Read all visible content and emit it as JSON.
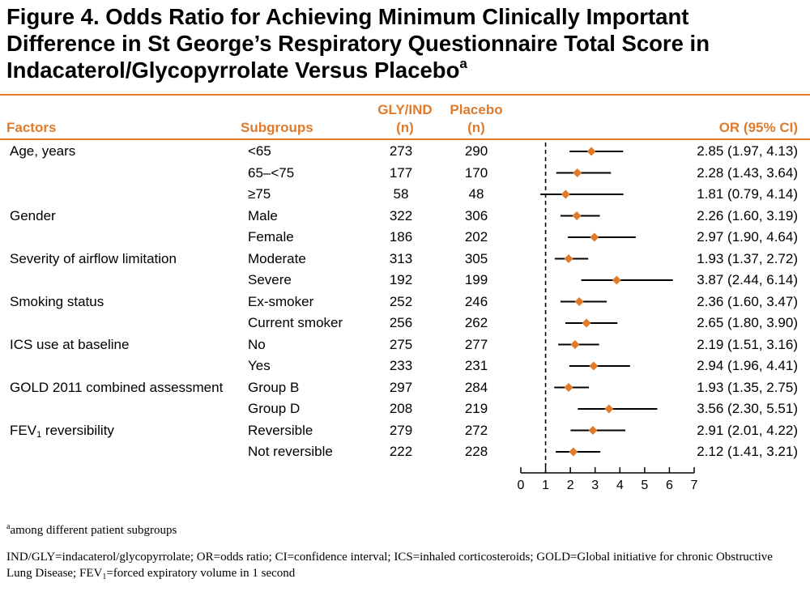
{
  "title": {
    "text": "Figure 4. Odds Ratio for Achieving Minimum Clinically Important Difference in St George’s Respiratory Questionnaire Total Score in Indacaterol/Glycopyrrolate Versus Placebo",
    "superscript": "a"
  },
  "headers": {
    "factors": "Factors",
    "subgroups": "Subgroups",
    "gly_line1": "GLY/IND",
    "gly_line2": "(n)",
    "placebo_line1": "Placebo",
    "placebo_line2": "(n)",
    "or": "OR (95% CI)"
  },
  "rows": [
    {
      "factor": "Age, years",
      "subgroup": "<65",
      "gly": "273",
      "placebo": "290",
      "or_text": "2.85 (1.97, 4.13)"
    },
    {
      "factor": "",
      "subgroup": "65–<75",
      "gly": "177",
      "placebo": "170",
      "or_text": "2.28 (1.43, 3.64)"
    },
    {
      "factor": "",
      "subgroup": "≥75",
      "gly": "58",
      "placebo": "48",
      "or_text": "1.81 (0.79, 4.14)"
    },
    {
      "factor": "Gender",
      "subgroup": "Male",
      "gly": "322",
      "placebo": "306",
      "or_text": "2.26 (1.60, 3.19)"
    },
    {
      "factor": "",
      "subgroup": "Female",
      "gly": "186",
      "placebo": "202",
      "or_text": "2.97 (1.90, 4.64)"
    },
    {
      "factor": "Severity of airflow limitation",
      "subgroup": "Moderate",
      "gly": "313",
      "placebo": "305",
      "or_text": "1.93 (1.37, 2.72)"
    },
    {
      "factor": "",
      "subgroup": "Severe",
      "gly": "192",
      "placebo": "199",
      "or_text": "3.87 (2.44, 6.14)"
    },
    {
      "factor": "Smoking status",
      "subgroup": "Ex-smoker",
      "gly": "252",
      "placebo": "246",
      "or_text": "2.36 (1.60, 3.47)"
    },
    {
      "factor": "",
      "subgroup": "Current smoker",
      "gly": "256",
      "placebo": "262",
      "or_text": "2.65 (1.80, 3.90)"
    },
    {
      "factor": "ICS use at baseline",
      "subgroup": "No",
      "gly": "275",
      "placebo": "277",
      "or_text": "2.19 (1.51, 3.16)"
    },
    {
      "factor": "",
      "subgroup": "Yes",
      "gly": "233",
      "placebo": "231",
      "or_text": "2.94 (1.96, 4.41)"
    },
    {
      "factor": "GOLD 2011 combined assessment",
      "subgroup": "Group B",
      "gly": "297",
      "placebo": "284",
      "or_text": "1.93 (1.35, 2.75)"
    },
    {
      "factor": "",
      "subgroup": "Group D",
      "gly": "208",
      "placebo": "219",
      "or_text": "3.56 (2.30, 5.51)"
    },
    {
      "factor": "FEV",
      "factor_sub": "1",
      "factor_rest": " reversibility",
      "subgroup": "Reversible",
      "gly": "279",
      "placebo": "272",
      "or_text": "2.91 (2.01, 4.22)"
    },
    {
      "factor": "",
      "subgroup": "Not reversible",
      "gly": "222",
      "placebo": "228",
      "or_text": "2.12 (1.41, 3.21)"
    }
  ],
  "chart_data": {
    "type": "forest",
    "xlim": [
      0,
      7
    ],
    "xticks": [
      "0",
      "1",
      "2",
      "3",
      "4",
      "5",
      "6",
      "7"
    ],
    "reference_line": 1,
    "marker_color": "#e07b2c",
    "points": [
      {
        "or": 2.85,
        "lo": 1.97,
        "hi": 4.13
      },
      {
        "or": 2.28,
        "lo": 1.43,
        "hi": 3.64
      },
      {
        "or": 1.81,
        "lo": 0.79,
        "hi": 4.14
      },
      {
        "or": 2.26,
        "lo": 1.6,
        "hi": 3.19
      },
      {
        "or": 2.97,
        "lo": 1.9,
        "hi": 4.64
      },
      {
        "or": 1.93,
        "lo": 1.37,
        "hi": 2.72
      },
      {
        "or": 3.87,
        "lo": 2.44,
        "hi": 6.14
      },
      {
        "or": 2.36,
        "lo": 1.6,
        "hi": 3.47
      },
      {
        "or": 2.65,
        "lo": 1.8,
        "hi": 3.9
      },
      {
        "or": 2.19,
        "lo": 1.51,
        "hi": 3.16
      },
      {
        "or": 2.94,
        "lo": 1.96,
        "hi": 4.41
      },
      {
        "or": 1.93,
        "lo": 1.35,
        "hi": 2.75
      },
      {
        "or": 3.56,
        "lo": 2.3,
        "hi": 5.51
      },
      {
        "or": 2.91,
        "lo": 2.01,
        "hi": 4.22
      },
      {
        "or": 2.12,
        "lo": 1.41,
        "hi": 3.21
      }
    ]
  },
  "footnotes": {
    "a_marker": "a",
    "a_text": "among different patient subgroups",
    "abbrev_1": "IND/GLY=indacaterol/glycopyrrolate; OR=odds ratio; CI=confidence interval; ICS=inhaled corticosteroids; GOLD=Global initiative for chronic Obstructive Lung Disease; FEV",
    "abbrev_sub": "1",
    "abbrev_2": "=forced expiratory volume in 1 second"
  },
  "colors": {
    "accent": "#e07b2c",
    "text": "#000000"
  }
}
